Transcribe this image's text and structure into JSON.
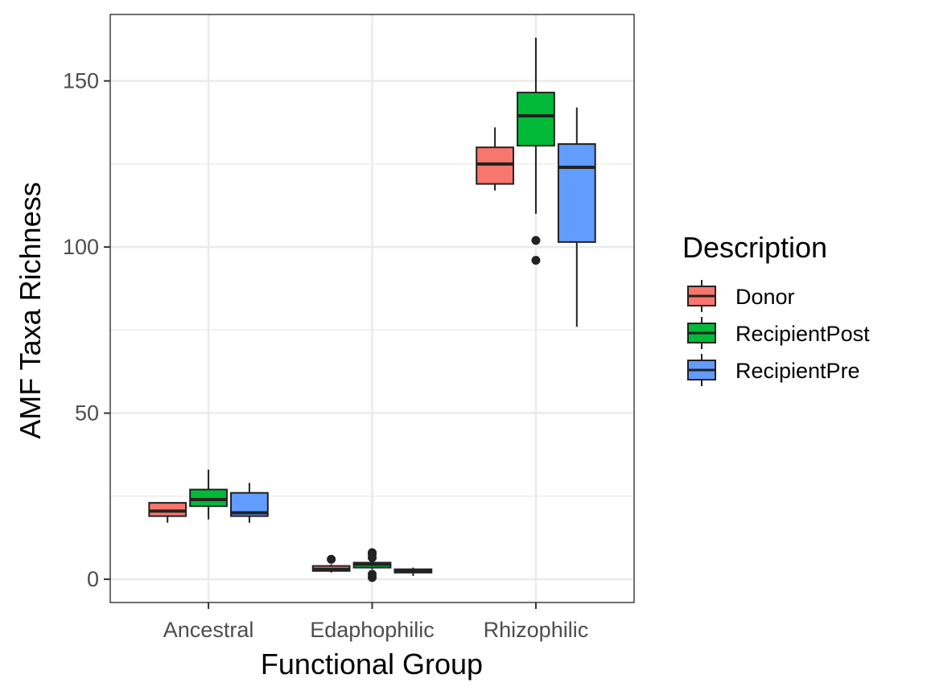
{
  "chart_data": {
    "type": "boxplot",
    "title": "",
    "xlabel": "Functional Group",
    "ylabel": "AMF Taxa Richness",
    "categories": [
      "Ancestral",
      "Edaphophilic",
      "Rhizophilic"
    ],
    "ylim": [
      -7,
      170
    ],
    "yticks": [
      0,
      50,
      100,
      150
    ],
    "grid": true,
    "legend": {
      "title": "Description",
      "position": "right"
    },
    "series": [
      {
        "name": "Donor",
        "color": "#F8766D",
        "boxes": [
          {
            "min": 17,
            "q1": 19,
            "median": 20.5,
            "q3": 23,
            "max": 23,
            "outliers": []
          },
          {
            "min": 2,
            "q1": 2.5,
            "median": 3,
            "q3": 4,
            "max": 4.5,
            "outliers": [
              6
            ]
          },
          {
            "min": 117,
            "q1": 119,
            "median": 125,
            "q3": 130,
            "max": 136,
            "outliers": []
          }
        ]
      },
      {
        "name": "RecipientPost",
        "color": "#00BA38",
        "boxes": [
          {
            "min": 18,
            "q1": 22,
            "median": 24,
            "q3": 27,
            "max": 33,
            "outliers": []
          },
          {
            "min": 3,
            "q1": 3.5,
            "median": 4.5,
            "q3": 5,
            "max": 6,
            "outliers": [
              0.5,
              1.5,
              6.5,
              7.5,
              8
            ]
          },
          {
            "min": 110,
            "q1": 130.5,
            "median": 139.5,
            "q3": 146.5,
            "max": 163,
            "outliers": [
              102,
              96
            ]
          }
        ]
      },
      {
        "name": "RecipientPre",
        "color": "#619CFF",
        "boxes": [
          {
            "min": 17,
            "q1": 19,
            "median": 20,
            "q3": 26,
            "max": 29,
            "outliers": []
          },
          {
            "min": 1,
            "q1": 2,
            "median": 2.5,
            "q3": 3,
            "max": 3.5,
            "outliers": []
          },
          {
            "min": 76,
            "q1": 101.5,
            "median": 124,
            "q3": 131,
            "max": 142,
            "outliers": []
          }
        ]
      }
    ]
  }
}
